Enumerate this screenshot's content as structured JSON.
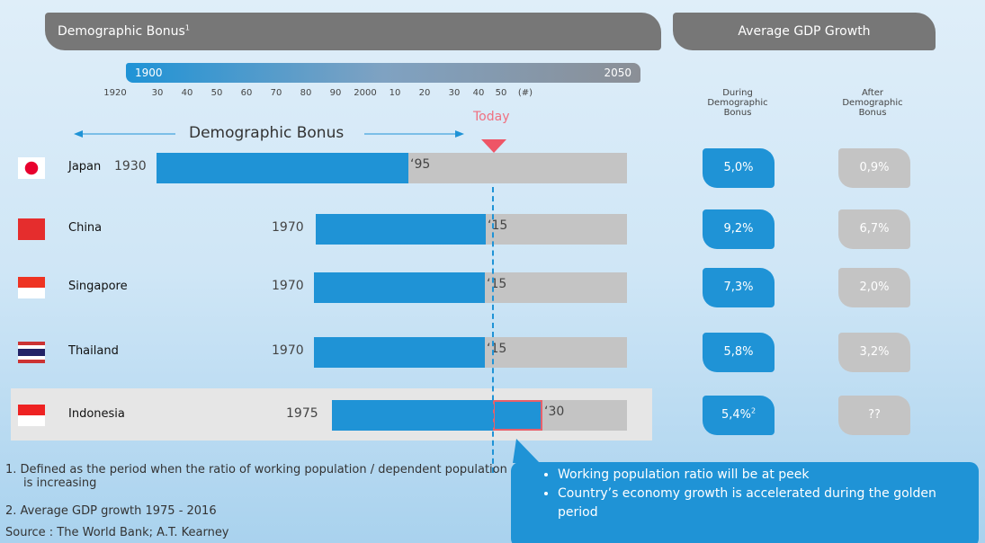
{
  "header": {
    "left_title": "Demographic Bonus",
    "left_title_sup": "1",
    "right_title": "Average GDP Growth"
  },
  "timeline": {
    "start": "1900",
    "end": "2050",
    "ticks": [
      "1920",
      "30",
      "40",
      "50",
      "60",
      "70",
      "80",
      "90",
      "2000",
      "10",
      "20",
      "30",
      "40",
      "50",
      "(#)"
    ]
  },
  "today": "Today",
  "bonus_label": "Demographic Bonus",
  "columns": [
    "During Demographic Bonus",
    "After Demographic Bonus"
  ],
  "rows": [
    {
      "country": "Japan",
      "start": "1930",
      "end": "‘95",
      "during": "5,0%",
      "after": "0,9%"
    },
    {
      "country": "China",
      "start": "1970",
      "end": "‘15",
      "during": "9,2%",
      "after": "6,7%"
    },
    {
      "country": "Singapore",
      "start": "1970",
      "end": "‘15",
      "during": "7,3%",
      "after": "2,0%"
    },
    {
      "country": "Thailand",
      "start": "1970",
      "end": "‘15",
      "during": "5,8%",
      "after": "3,2%"
    },
    {
      "country": "Indonesia",
      "start": "1975",
      "end": "‘30",
      "during": "5,4%",
      "during_sup": "2",
      "after": "??"
    }
  ],
  "footnotes": [
    "1.    Defined as the period when the ratio of working population / dependent population is increasing",
    "2.    Average GDP growth 1975 - 2016"
  ],
  "source": "Source : The World Bank; A.T. Kearney",
  "callout": [
    "Working population ratio will be at peek",
    "Country’s economy  growth is accelerated during the golden period"
  ]
}
